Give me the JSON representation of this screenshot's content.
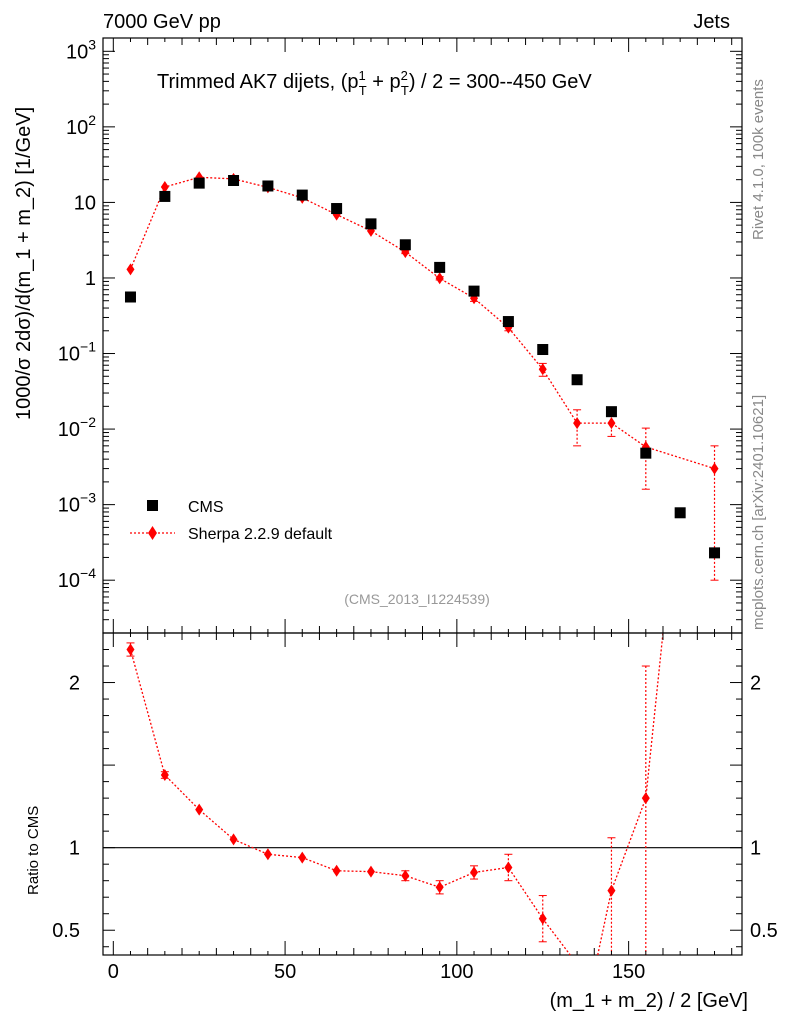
{
  "header": {
    "left": "7000 GeV pp",
    "right": "Jets"
  },
  "side_labels": {
    "rivet": "Rivet 4.1.0,  100k events",
    "mcplots": "mcplots.cern.ch [arXiv:2401.10621]"
  },
  "chart_data": [
    {
      "type": "scatter",
      "title": "Trimmed AK7 dijets, (p",
      "title_full": "Trimmed AK7 dijets, (p_T^1 + p_T^2) / 2 = 300--450 GeV",
      "title_parts": {
        "pre": "Trimmed AK7 dijets, (p",
        "sup1": "1",
        "sub": "T",
        "plus": " + p",
        "sup2": "2",
        "post": ") / 2 = 300--450 GeV"
      },
      "ylabel": "1000/σ  2dσ)/d(m_1 + m_2) [1/GeV]",
      "analysis_id": "(CMS_2013_I1224539)",
      "yscale": "log",
      "ylim": [
        2e-05,
        1500
      ],
      "xlim": [
        -3,
        183
      ],
      "y_ticks": [
        {
          "base": "10",
          "exp": "3",
          "value": 1000
        },
        {
          "base": "10",
          "exp": "2",
          "value": 100
        },
        {
          "base": "10",
          "exp": "",
          "value": 10
        },
        {
          "base": "1",
          "exp": "",
          "value": 1
        },
        {
          "base": "10",
          "exp": "−1",
          "value": 0.1
        },
        {
          "base": "10",
          "exp": "−2",
          "value": 0.01
        },
        {
          "base": "10",
          "exp": "−3",
          "value": 0.001
        },
        {
          "base": "10",
          "exp": "−4",
          "value": 0.0001
        }
      ],
      "legend": [
        {
          "label": "CMS",
          "marker": "square",
          "color": "#000000"
        },
        {
          "label": "Sherpa 2.2.9 default",
          "marker": "diamond",
          "color": "#ff0000"
        }
      ],
      "series": [
        {
          "name": "CMS",
          "color": "#000000",
          "x": [
            5,
            15,
            25,
            35,
            45,
            55,
            65,
            75,
            85,
            95,
            105,
            115,
            125,
            135,
            145,
            155,
            165,
            175
          ],
          "y": [
            0.56,
            12,
            18,
            19.5,
            16.5,
            12.5,
            8.3,
            5.2,
            2.75,
            1.38,
            0.67,
            0.265,
            0.113,
            0.045,
            0.017,
            0.0048,
            0.00078,
            0.00023
          ]
        },
        {
          "name": "Sherpa 2.2.9 default",
          "color": "#ff0000",
          "x": [
            5,
            15,
            25,
            35,
            45,
            55,
            65,
            75,
            85,
            95,
            105,
            115,
            125,
            135,
            145,
            155,
            175
          ],
          "y": [
            1.3,
            16,
            21.5,
            20.5,
            15.8,
            11.5,
            6.9,
            4.2,
            2.2,
            0.99,
            0.54,
            0.22,
            0.062,
            0.012,
            0.012,
            0.0058,
            0.003
          ],
          "err_lo": [
            0,
            0,
            0,
            0,
            0,
            0,
            0,
            0,
            0.1,
            0.05,
            0.05,
            0.02,
            0.012,
            0.006,
            0.004,
            0.0042,
            0.0029
          ],
          "err_hi": [
            0,
            0,
            0,
            0,
            0,
            0,
            0,
            0,
            0.1,
            0.05,
            0.05,
            0.02,
            0.012,
            0.006,
            0.004,
            0.0045,
            0.003
          ]
        }
      ]
    },
    {
      "type": "line",
      "ylabel": "Ratio to CMS",
      "xlabel": "(m_1 + m_2) / 2 [GeV]",
      "ylim": [
        0.35,
        2.3
      ],
      "xlim": [
        -3,
        183
      ],
      "x_ticks": [
        0,
        50,
        100,
        150
      ],
      "y_ticks": [
        {
          "label": "2",
          "value": 2
        },
        {
          "label": "1",
          "value": 1
        },
        {
          "label": "0.5",
          "value": 0.5
        }
      ],
      "reference_line": 1,
      "series": [
        {
          "name": "Sherpa 2.2.9 default",
          "color": "#ff0000",
          "x": [
            5,
            15,
            25,
            35,
            45,
            55,
            65,
            75,
            85,
            95,
            105,
            115,
            125,
            145,
            155
          ],
          "y": [
            2.2,
            1.44,
            1.23,
            1.05,
            0.96,
            0.94,
            0.86,
            0.855,
            0.83,
            0.76,
            0.85,
            0.88,
            0.57,
            0.74,
            1.3
          ],
          "err_lo": [
            0.04,
            0.02,
            0.01,
            0.01,
            0.01,
            0.01,
            0.01,
            0.01,
            0.03,
            0.04,
            0.04,
            0.08,
            0.14,
            0.41,
            1.0
          ],
          "err_hi": [
            0.04,
            0.02,
            0.01,
            0.01,
            0.01,
            0.01,
            0.01,
            0.01,
            0.03,
            0.04,
            0.04,
            0.08,
            0.14,
            0.32,
            0.8
          ],
          "exit": [
            {
              "x": 133,
              "y": 0.35
            },
            {
              "x": 160,
              "y": 2.3
            }
          ]
        }
      ]
    }
  ]
}
